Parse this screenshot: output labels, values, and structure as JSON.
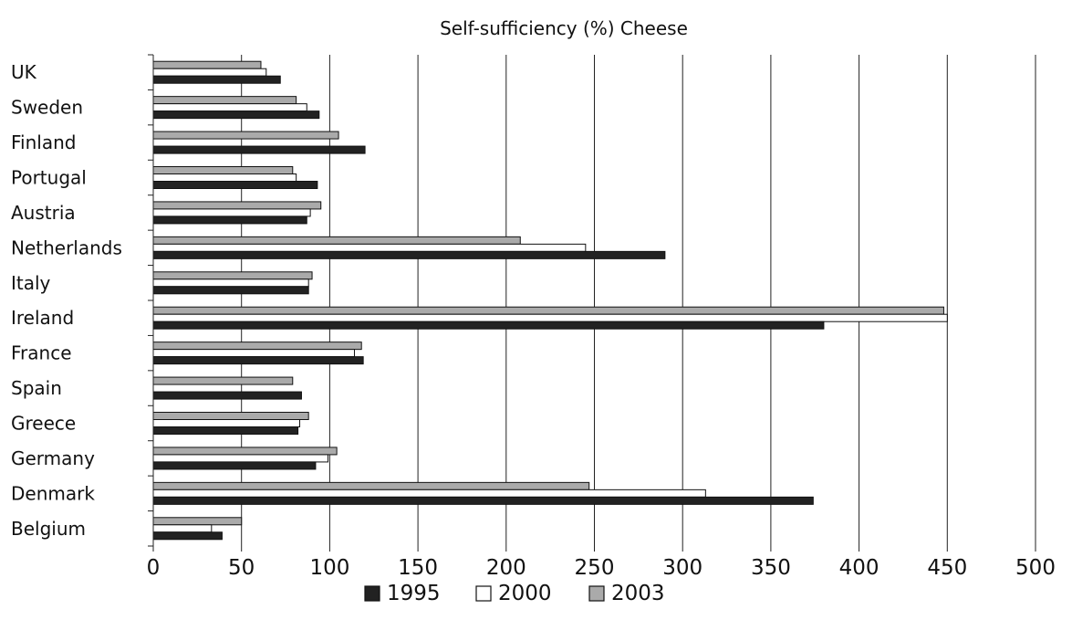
{
  "chart_data": {
    "type": "bar",
    "orientation": "horizontal",
    "title": "Self-sufficiency (%) Cheese",
    "xlabel": "",
    "ylabel": "",
    "xlim": [
      0,
      500
    ],
    "x_ticks": [
      0,
      50,
      100,
      150,
      200,
      250,
      300,
      350,
      400,
      450,
      500
    ],
    "x_tick_labels": [
      "0",
      "50",
      "100",
      "150",
      "200",
      "250",
      "300",
      "350",
      "400",
      "450",
      "500"
    ],
    "grid": "vertical",
    "legend_position": "bottom",
    "categories": [
      "UK",
      "Sweden",
      "Finland",
      "Portugal",
      "Austria",
      "Netherlands",
      "Italy",
      "Ireland",
      "France",
      "Spain",
      "Greece",
      "Germany",
      "Denmark",
      "Belgium"
    ],
    "series": [
      {
        "name": "1995",
        "color": "#222222",
        "legend_symbol": "■",
        "values": [
          72,
          94,
          120,
          93,
          87,
          290,
          88,
          380,
          119,
          84,
          82,
          92,
          374,
          39
        ]
      },
      {
        "name": "2000",
        "color": "#ffffff",
        "legend_symbol": "□",
        "values": [
          64,
          87,
          null,
          81,
          89,
          245,
          88,
          450,
          114,
          null,
          83,
          99,
          313,
          33
        ]
      },
      {
        "name": "2003",
        "color": "#aaaaaa",
        "legend_symbol": "▩",
        "values": [
          61,
          81,
          105,
          79,
          95,
          208,
          90,
          448,
          118,
          79,
          88,
          104,
          247,
          50
        ]
      }
    ]
  }
}
